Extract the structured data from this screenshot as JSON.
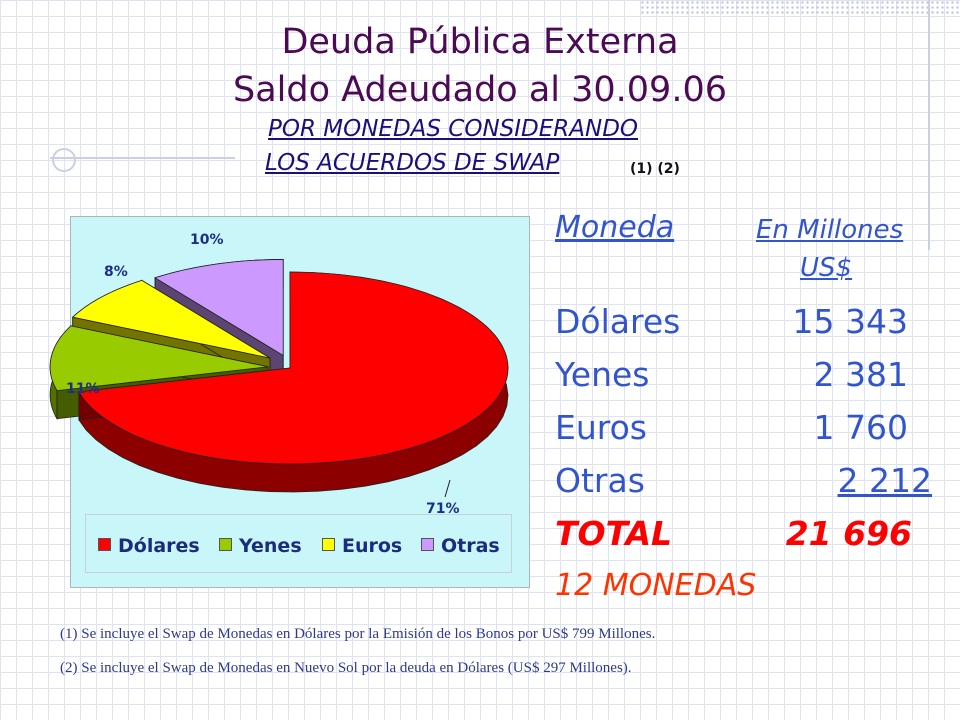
{
  "title": {
    "line1": "Deuda Pública Externa",
    "line2": "Saldo Adeudado al 30.09.06",
    "sub1": "POR MONEDAS CONSIDERANDO",
    "sub2": "LOS ACUERDOS DE SWAP",
    "notes_ref": "(1) (2)"
  },
  "chart_data": {
    "type": "pie",
    "categories": [
      "Dólares",
      "Yenes",
      "Euros",
      "Otras"
    ],
    "values": [
      71,
      11,
      8,
      10
    ],
    "data_labels": [
      "71%",
      "11%",
      "8%",
      "10%"
    ],
    "colors": [
      "#ff0000",
      "#99cc00",
      "#ffff00",
      "#cc99ff"
    ],
    "legend": "bottom",
    "exploded": true,
    "three_d": true
  },
  "table": {
    "header_moneda": "Moneda",
    "header_amount_1": "En Millones",
    "header_amount_2": "US$",
    "rows": [
      {
        "label": "Dólares",
        "value": "15 343"
      },
      {
        "label": "Yenes",
        "value": "2 381"
      },
      {
        "label": "Euros",
        "value": "1 760"
      },
      {
        "label": "Otras",
        "value": "2 212"
      }
    ],
    "total_label": "TOTAL",
    "total_value": "21 696",
    "monedas": "12 MONEDAS"
  },
  "footnotes": [
    "(1)  Se incluye el Swap de Monedas en Dólares por la Emisión de los Bonos por US$ 799 Millones.",
    "(2)  Se incluye el Swap de Monedas en Nuevo Sol por la deuda en Dólares (US$ 297 Millones)."
  ]
}
